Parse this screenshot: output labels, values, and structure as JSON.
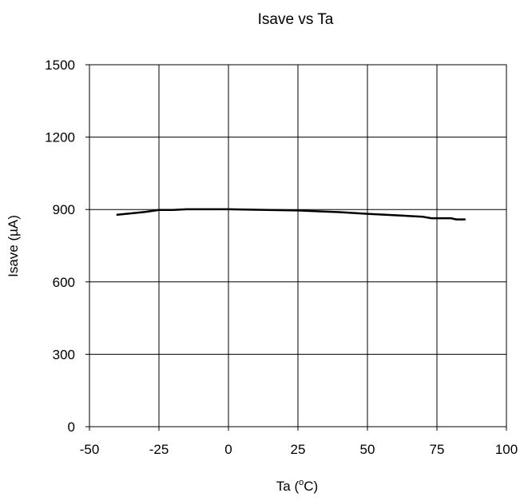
{
  "chart_data": {
    "type": "line",
    "title": "Isave vs Ta",
    "xlabel": "Ta (",
    "xlabel_sup": "o",
    "xlabel_suffix": "C)",
    "ylabel": "Isave (µA)",
    "xlim": [
      -50,
      100
    ],
    "ylim": [
      0,
      1500
    ],
    "xticks": [
      -50,
      -25,
      0,
      25,
      50,
      75,
      100
    ],
    "yticks": [
      0,
      300,
      600,
      900,
      1200,
      1500
    ],
    "grid": true,
    "legend": "none",
    "series": [
      {
        "color": "#000000",
        "x": [
          -40,
          -35,
          -30,
          -25,
          -20,
          -15,
          -10,
          0,
          10,
          25,
          40,
          50,
          60,
          70,
          73,
          80,
          82,
          85
        ],
        "y": [
          878,
          884,
          890,
          898,
          898,
          901,
          901,
          901,
          899,
          896,
          889,
          882,
          876,
          870,
          864,
          864,
          859,
          859
        ]
      }
    ]
  }
}
